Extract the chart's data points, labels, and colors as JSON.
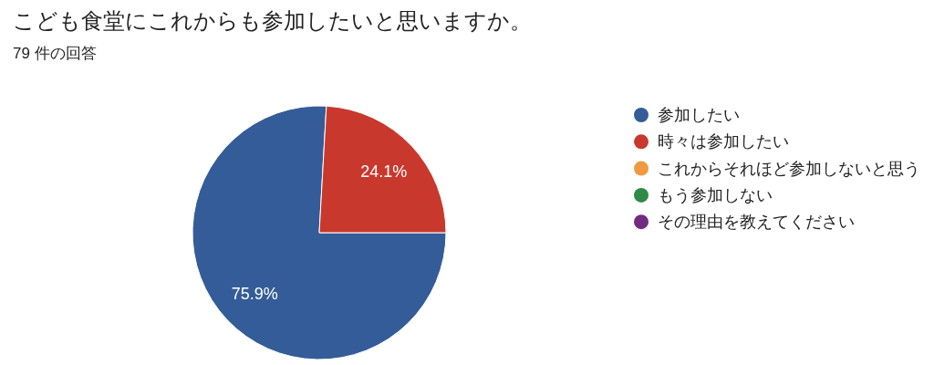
{
  "chart_data": {
    "type": "pie",
    "title": "こども食堂にこれからも参加したいと思いますか。",
    "subtitle": "79 件の回答",
    "categories": [
      "参加したい",
      "時々は参加したい",
      "これからそれほど参加しないと思う",
      "もう参加しない",
      "その理由を教えてください"
    ],
    "values": [
      75.9,
      24.1,
      0,
      0,
      0
    ],
    "colors": [
      "#345c98",
      "#c9382d",
      "#ef9a42",
      "#2f8a45",
      "#732b80"
    ],
    "value_labels": [
      "75.9%",
      "24.1%",
      null,
      null,
      null
    ],
    "legend": "right"
  }
}
